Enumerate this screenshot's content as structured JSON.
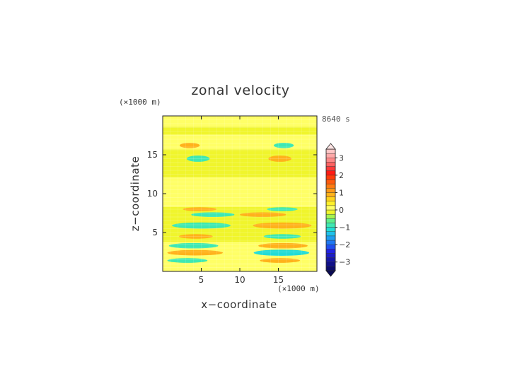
{
  "chart_data": {
    "type": "heatmap",
    "title": "zonal velocity",
    "xlabel": "x−coordinate",
    "ylabel": "z−coordinate",
    "x_unit": "(×1000 m)",
    "y_unit": "(×1000 m)",
    "time_label": "8640 s",
    "xlim": [
      0,
      20
    ],
    "ylim": [
      0,
      20
    ],
    "x_ticks": [
      5,
      10,
      15
    ],
    "y_ticks": [
      5,
      10,
      15
    ],
    "x_tick_labels": [
      "5",
      "10",
      "15"
    ],
    "y_tick_labels": [
      "5",
      "10",
      "15"
    ],
    "colorbar": {
      "levels": [
        -3.5,
        -3.25,
        -3,
        -2.75,
        -2.5,
        -2.25,
        -2,
        -1.75,
        -1.5,
        -1.25,
        -1,
        -0.75,
        -0.5,
        -0.25,
        0,
        0.25,
        0.5,
        0.75,
        1,
        1.25,
        1.5,
        1.75,
        2,
        2.25,
        2.5,
        2.75,
        3,
        3.25,
        3.5
      ],
      "colors": [
        "#0c0c6e",
        "#10108a",
        "#1616a6",
        "#1c1cc6",
        "#2222e2",
        "#1f4ff0",
        "#1f78f2",
        "#1e9ef0",
        "#1fc0ea",
        "#22dcd6",
        "#3ee8b2",
        "#5fee8c",
        "#a6f250",
        "#f0f52c",
        "#ffff66",
        "#fff02a",
        "#ffd21e",
        "#ffb21a",
        "#ff9818",
        "#ff7a12",
        "#ff5a0e",
        "#ff3a0a",
        "#ff1a14",
        "#ff3a3a",
        "#ff6262",
        "#ff8888",
        "#ffa8a8",
        "#ffc6c6"
      ],
      "tick_values": [
        -3,
        -2,
        -1,
        0,
        1,
        2,
        3
      ],
      "tick_labels": [
        "−3",
        "−2",
        "−1",
        "0",
        "1",
        "2",
        "3"
      ],
      "extend": "both"
    },
    "background_field": [
      {
        "z": [
          0,
          0.9
        ],
        "value": 0.1
      },
      {
        "z": [
          0.9,
          3.8
        ],
        "value": 0.2
      },
      {
        "z": [
          3.8,
          8.3
        ],
        "value": -0.1
      },
      {
        "z": [
          8.3,
          12.1
        ],
        "value": 0.2
      },
      {
        "z": [
          12.1,
          15.7
        ],
        "value": -0.1
      },
      {
        "z": [
          15.7,
          17.6
        ],
        "value": 0.2
      },
      {
        "z": [
          17.6,
          18.6
        ],
        "value": -0.1
      },
      {
        "z": [
          18.6,
          20
        ],
        "value": 0.2
      }
    ],
    "blobs": [
      {
        "x": 3.5,
        "z": 16.2,
        "rx": 1.3,
        "rz": 0.35,
        "value": 0.8
      },
      {
        "x": 15.7,
        "z": 16.2,
        "rx": 1.3,
        "rz": 0.35,
        "value": -0.9
      },
      {
        "x": 4.6,
        "z": 14.5,
        "rx": 1.5,
        "rz": 0.4,
        "value": -0.9
      },
      {
        "x": 15.2,
        "z": 14.5,
        "rx": 1.5,
        "rz": 0.4,
        "value": 0.8
      },
      {
        "x": 4.8,
        "z": 8.0,
        "rx": 2.2,
        "rz": 0.25,
        "value": 0.8
      },
      {
        "x": 15.5,
        "z": 8.0,
        "rx": 2.0,
        "rz": 0.25,
        "value": -0.8
      },
      {
        "x": 6.5,
        "z": 7.3,
        "rx": 2.8,
        "rz": 0.3,
        "value": -0.8
      },
      {
        "x": 13.0,
        "z": 7.3,
        "rx": 3.0,
        "rz": 0.3,
        "value": 0.8
      },
      {
        "x": 5.0,
        "z": 5.9,
        "rx": 3.8,
        "rz": 0.4,
        "value": -1.0
      },
      {
        "x": 15.5,
        "z": 5.9,
        "rx": 3.8,
        "rz": 0.4,
        "value": 0.8
      },
      {
        "x": 4.3,
        "z": 4.5,
        "rx": 2.2,
        "rz": 0.3,
        "value": 0.8
      },
      {
        "x": 15.5,
        "z": 4.5,
        "rx": 2.4,
        "rz": 0.3,
        "value": -0.8
      },
      {
        "x": 4.0,
        "z": 3.3,
        "rx": 3.2,
        "rz": 0.35,
        "value": -0.9
      },
      {
        "x": 15.6,
        "z": 3.3,
        "rx": 3.2,
        "rz": 0.35,
        "value": 0.8
      },
      {
        "x": 4.2,
        "z": 2.4,
        "rx": 3.6,
        "rz": 0.35,
        "value": 0.9
      },
      {
        "x": 15.4,
        "z": 2.4,
        "rx": 3.6,
        "rz": 0.4,
        "value": -1.1
      },
      {
        "x": 3.2,
        "z": 1.4,
        "rx": 2.6,
        "rz": 0.3,
        "value": -0.8
      },
      {
        "x": 15.2,
        "z": 1.4,
        "rx": 2.6,
        "rz": 0.3,
        "value": 0.8
      }
    ]
  }
}
